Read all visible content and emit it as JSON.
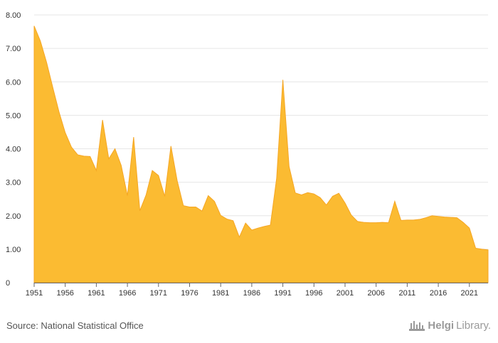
{
  "chart_data": {
    "type": "area",
    "title": "",
    "xlabel": "",
    "ylabel": "",
    "ylim": [
      0,
      8
    ],
    "ytick_labels": [
      "0",
      "1.00",
      "2.00",
      "3.00",
      "4.00",
      "5.00",
      "6.00",
      "7.00",
      "8.00"
    ],
    "ytick_values": [
      0,
      1,
      2,
      3,
      4,
      5,
      6,
      7,
      8
    ],
    "xtick_labels": [
      "1951",
      "1956",
      "1961",
      "1966",
      "1971",
      "1976",
      "1981",
      "1986",
      "1991",
      "1996",
      "2001",
      "2006",
      "2011",
      "2016",
      "2021"
    ],
    "x": [
      1951,
      1952,
      1953,
      1954,
      1955,
      1956,
      1957,
      1958,
      1959,
      1960,
      1961,
      1962,
      1963,
      1964,
      1965,
      1966,
      1967,
      1968,
      1969,
      1970,
      1971,
      1972,
      1973,
      1974,
      1975,
      1976,
      1977,
      1978,
      1979,
      1980,
      1981,
      1982,
      1983,
      1984,
      1985,
      1986,
      1987,
      1988,
      1989,
      1990,
      1991,
      1992,
      1993,
      1994,
      1995,
      1996,
      1997,
      1998,
      1999,
      2000,
      2001,
      2002,
      2003,
      2004,
      2005,
      2006,
      2007,
      2008,
      2009,
      2010,
      2011,
      2012,
      2013,
      2014,
      2015,
      2016,
      2017,
      2018,
      2019,
      2020,
      2021,
      2022,
      2023,
      2024
    ],
    "series": [
      {
        "name": "Value",
        "values": [
          7.67,
          7.22,
          6.58,
          5.83,
          5.1,
          4.48,
          4.05,
          3.82,
          3.78,
          3.77,
          3.35,
          4.86,
          3.7,
          4.0,
          3.5,
          2.6,
          4.35,
          2.15,
          2.62,
          3.35,
          3.2,
          2.58,
          4.08,
          3.05,
          2.3,
          2.26,
          2.26,
          2.14,
          2.6,
          2.43,
          2.01,
          1.9,
          1.85,
          1.36,
          1.78,
          1.57,
          1.63,
          1.68,
          1.72,
          3.12,
          6.06,
          3.47,
          2.68,
          2.62,
          2.69,
          2.65,
          2.54,
          2.32,
          2.58,
          2.67,
          2.38,
          2.02,
          1.83,
          1.8,
          1.79,
          1.79,
          1.8,
          1.79,
          2.43,
          1.86,
          1.87,
          1.87,
          1.89,
          1.94,
          2.0,
          1.98,
          1.96,
          1.95,
          1.94,
          1.8,
          1.63,
          1.03,
          1.0,
          0.98
        ]
      }
    ],
    "colors": {
      "area": "#fbbb32",
      "line": "#f5a623"
    }
  },
  "footer": {
    "source": "Source: National Statistical Office",
    "brand_helgi": "Helgi",
    "brand_library": "Library."
  }
}
